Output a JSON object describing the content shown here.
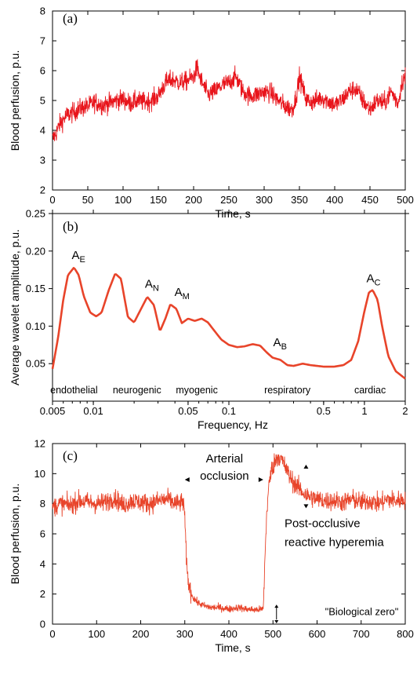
{
  "chart_data": [
    {
      "type": "line",
      "panel_label": "(a)",
      "xlabel": "Time, s",
      "ylabel": "Blood perfusion, p.u.",
      "xlim": [
        0,
        500
      ],
      "ylim": [
        2,
        8
      ],
      "xticks": [
        0,
        50,
        100,
        150,
        200,
        250,
        300,
        350,
        400,
        450,
        500
      ],
      "yticks": [
        2,
        3,
        4,
        5,
        6,
        7,
        8
      ],
      "line_color": "#e8141b",
      "series": [
        {
          "x": [
            0,
            5,
            10,
            20,
            30,
            40,
            50,
            60,
            70,
            80,
            90,
            100,
            110,
            120,
            130,
            140,
            150,
            160,
            170,
            180,
            190,
            200,
            205,
            210,
            220,
            230,
            240,
            250,
            260,
            270,
            280,
            290,
            300,
            310,
            320,
            330,
            340,
            345,
            350,
            360,
            370,
            380,
            390,
            400,
            410,
            420,
            430,
            440,
            450,
            460,
            470,
            480,
            490,
            495,
            500
          ],
          "values": [
            3.7,
            3.9,
            4.2,
            4.5,
            4.6,
            4.75,
            4.8,
            4.95,
            4.85,
            4.9,
            5.0,
            5.05,
            4.9,
            5.0,
            4.95,
            5.0,
            5.15,
            5.6,
            5.7,
            5.6,
            5.65,
            5.8,
            6.1,
            5.7,
            5.2,
            5.3,
            5.5,
            5.6,
            5.8,
            5.3,
            5.15,
            5.2,
            5.3,
            5.25,
            5.0,
            4.8,
            4.7,
            5.1,
            5.8,
            5.0,
            4.95,
            5.1,
            5.0,
            4.85,
            5.0,
            5.3,
            5.4,
            5.0,
            4.7,
            5.0,
            4.9,
            5.3,
            4.9,
            5.6,
            5.8
          ]
        }
      ]
    },
    {
      "type": "line",
      "panel_label": "(b)",
      "xlabel": "Frequency, Hz",
      "ylabel": "Average wavelet amplitude, p.u.",
      "xscale": "log",
      "xlim": [
        0.005,
        2
      ],
      "ylim": [
        0.0,
        0.25
      ],
      "xticks": [
        0.005,
        0.01,
        0.05,
        0.1,
        0.5,
        1,
        2
      ],
      "xtick_labels": [
        "0.005",
        "0.01",
        "0.05",
        "0.1",
        "0.5",
        "1",
        "2"
      ],
      "yticks": [
        0.05,
        0.1,
        0.15,
        0.2,
        0.25
      ],
      "ytick_labels": [
        "0.05",
        "0.10",
        "0.15",
        "0.20",
        "0.25"
      ],
      "line_color": "#e8442a",
      "series": [
        {
          "x": [
            0.005,
            0.0055,
            0.006,
            0.0065,
            0.0072,
            0.0078,
            0.0085,
            0.0095,
            0.0105,
            0.0115,
            0.013,
            0.0145,
            0.016,
            0.018,
            0.02,
            0.0225,
            0.025,
            0.028,
            0.031,
            0.034,
            0.037,
            0.041,
            0.045,
            0.05,
            0.056,
            0.063,
            0.07,
            0.078,
            0.088,
            0.1,
            0.115,
            0.13,
            0.15,
            0.17,
            0.19,
            0.21,
            0.24,
            0.27,
            0.3,
            0.35,
            0.4,
            0.5,
            0.6,
            0.7,
            0.8,
            0.9,
            1.0,
            1.08,
            1.15,
            1.25,
            1.35,
            1.5,
            1.7,
            2.0
          ],
          "values": [
            0.043,
            0.085,
            0.135,
            0.168,
            0.178,
            0.168,
            0.14,
            0.118,
            0.113,
            0.118,
            0.148,
            0.17,
            0.163,
            0.112,
            0.105,
            0.123,
            0.139,
            0.128,
            0.093,
            0.11,
            0.129,
            0.123,
            0.104,
            0.11,
            0.107,
            0.11,
            0.105,
            0.094,
            0.082,
            0.075,
            0.072,
            0.073,
            0.076,
            0.074,
            0.065,
            0.058,
            0.055,
            0.048,
            0.047,
            0.05,
            0.048,
            0.046,
            0.046,
            0.048,
            0.055,
            0.08,
            0.12,
            0.145,
            0.148,
            0.135,
            0.1,
            0.06,
            0.04,
            0.03
          ]
        }
      ],
      "annotations": [
        {
          "base": "A",
          "sub": "E",
          "x": 0.0075,
          "y": 0.183
        },
        {
          "base": "A",
          "sub": "N",
          "x": 0.026,
          "y": 0.145
        },
        {
          "base": "A",
          "sub": "M",
          "x": 0.043,
          "y": 0.134
        },
        {
          "base": "A",
          "sub": "B",
          "x": 0.23,
          "y": 0.067
        },
        {
          "base": "A",
          "sub": "C",
          "x": 1.12,
          "y": 0.152
        }
      ],
      "band_labels": [
        {
          "text": "endothelial",
          "x": 0.0072
        },
        {
          "text": "neurogenic",
          "x": 0.021
        },
        {
          "text": "myogenic",
          "x": 0.058
        },
        {
          "text": "respiratory",
          "x": 0.27
        },
        {
          "text": "cardiac",
          "x": 1.1
        }
      ]
    },
    {
      "type": "line",
      "panel_label": "(c)",
      "xlabel": "Time, s",
      "ylabel": "Blood perfusion, p.u.",
      "xlim": [
        0,
        800
      ],
      "ylim": [
        0,
        12
      ],
      "xticks": [
        0,
        100,
        200,
        300,
        400,
        500,
        600,
        700,
        800
      ],
      "yticks": [
        0,
        2,
        4,
        6,
        8,
        10,
        12
      ],
      "line_color": "#e8442a",
      "series": [
        {
          "x": [
            0,
            20,
            40,
            60,
            80,
            100,
            120,
            140,
            160,
            180,
            200,
            220,
            240,
            260,
            280,
            298,
            302,
            305,
            310,
            318,
            330,
            345,
            360,
            380,
            400,
            420,
            440,
            460,
            478,
            482,
            486,
            490,
            496,
            504,
            512,
            520,
            530,
            540,
            550,
            560,
            570,
            580,
            600,
            620,
            640,
            660,
            680,
            700,
            720,
            740,
            760,
            780,
            800
          ],
          "values": [
            7.8,
            8.0,
            7.9,
            8.2,
            8.1,
            8.0,
            8.1,
            8.4,
            7.9,
            8.2,
            8.1,
            8.0,
            8.2,
            8.3,
            8.0,
            8.1,
            5.5,
            3.5,
            2.5,
            1.8,
            1.4,
            1.2,
            1.1,
            1.1,
            1.0,
            1.1,
            1.0,
            0.95,
            1.0,
            4.5,
            7.5,
            9.0,
            10.2,
            10.8,
            11.2,
            10.9,
            10.3,
            9.7,
            9.3,
            9.0,
            8.7,
            8.5,
            8.3,
            8.2,
            8.2,
            8.1,
            8.3,
            8.1,
            8.2,
            8.0,
            8.3,
            8.2,
            8.3
          ]
        }
      ],
      "annotations": [
        {
          "text": "Arterial",
          "x": 390,
          "y": 10.75
        },
        {
          "text": "occlusion",
          "x": 390,
          "y": 9.6
        },
        {
          "text": "Post-occlusive",
          "x": 695,
          "y": 6.45
        },
        {
          "text": "reactive hyperemia",
          "x": 695,
          "y": 5.2
        },
        {
          "text": "\"Biological zero\"",
          "x": 618,
          "y": 0.6
        }
      ]
    }
  ]
}
